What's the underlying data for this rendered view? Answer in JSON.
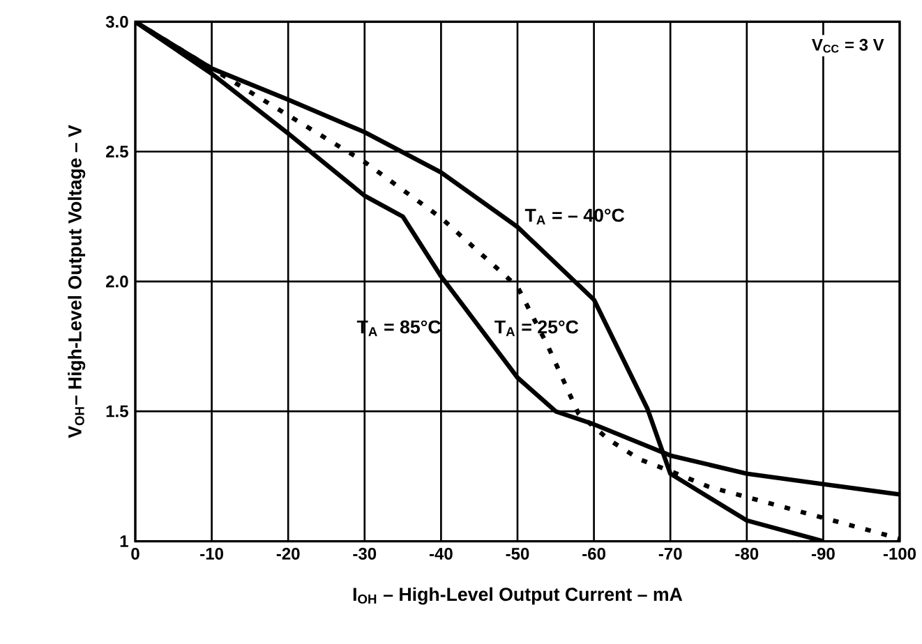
{
  "chart_data": {
    "type": "line",
    "xlabel": "I$_{OH}$ – High-Level Output Current – mA",
    "ylabel": "V$_{OH}$– High-Level Output Voltage – V",
    "annotations": [
      "V$_{CC}$ = 3 V"
    ],
    "xlim": [
      0,
      -100
    ],
    "ylim": [
      1,
      3
    ],
    "xticks": [
      0,
      -10,
      -20,
      -30,
      -40,
      -50,
      -60,
      -70,
      -80,
      -90,
      -100
    ],
    "yticks": [
      1,
      1.5,
      {
        "value": 2,
        "label": "2.0"
      },
      2.5,
      {
        "value": 3,
        "label": "3.0"
      }
    ],
    "grid": true,
    "series": [
      {
        "name": "T$_{A}$ = – 40°C",
        "color": "#000000",
        "line_style": "solid",
        "x": [
          0,
          -10,
          -20,
          -30,
          -40,
          -50,
          -60,
          -67,
          -70,
          -80,
          -90
        ],
        "values": [
          3.0,
          2.82,
          2.7,
          2.575,
          2.42,
          2.21,
          1.93,
          1.51,
          1.26,
          1.08,
          1.0
        ]
      },
      {
        "name": "T$_{A}$ = 85°C",
        "color": "#000000",
        "line_style": "solid",
        "x": [
          0,
          -10,
          -20,
          -30,
          -35,
          -40,
          -50,
          -55,
          -60,
          -70,
          -80,
          -90,
          -100
        ],
        "values": [
          3.0,
          2.8,
          2.57,
          2.33,
          2.25,
          2.02,
          1.63,
          1.5,
          1.45,
          1.33,
          1.26,
          1.22,
          1.18
        ]
      },
      {
        "name": "T$_{A}$ = 25°C",
        "color": "#000000",
        "line_style": "dashed",
        "x": [
          0,
          -10,
          -20,
          -30,
          -40,
          -50,
          -54,
          -56,
          -58,
          -62,
          -66,
          -70,
          -75,
          -80,
          -90,
          -100
        ],
        "values": [
          3.0,
          2.82,
          2.64,
          2.46,
          2.245,
          1.98,
          1.75,
          1.62,
          1.49,
          1.39,
          1.315,
          1.27,
          1.21,
          1.17,
          1.09,
          1.01
        ]
      }
    ]
  }
}
